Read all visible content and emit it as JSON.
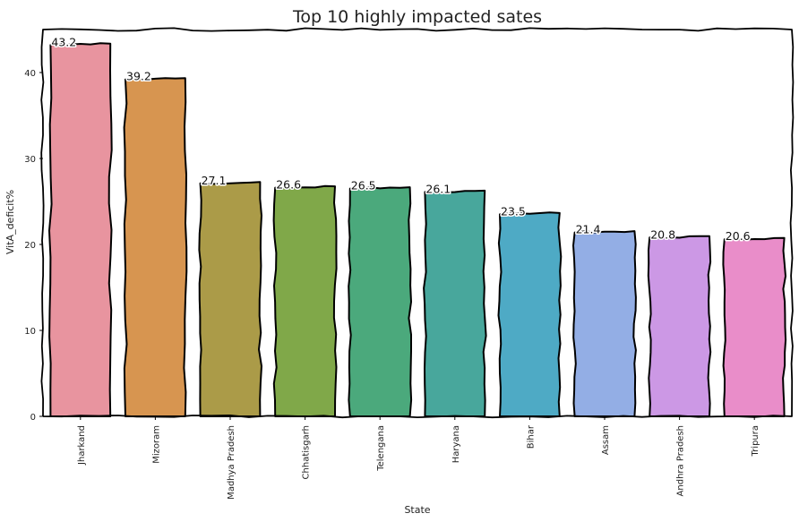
{
  "chart_data": {
    "type": "bar",
    "title": "Top 10 highly impacted sates",
    "xlabel": "State",
    "ylabel": "VitA_deficit%",
    "categories": [
      "Jharkand",
      "Mizoram",
      "Madhya Pradesh",
      "Chhatisgarh",
      "Telengana",
      "Haryana",
      "Bihar",
      "Assam",
      "Andhra Pradesh",
      "Tripura"
    ],
    "values": [
      43.2,
      39.2,
      27.1,
      26.6,
      26.5,
      26.1,
      23.5,
      21.4,
      20.8,
      20.6
    ],
    "value_labels": [
      "43.2",
      "39.2",
      "27.1",
      "26.6",
      "26.5",
      "26.1",
      "23.5",
      "21.4",
      "20.8",
      "20.6"
    ],
    "colors": [
      "#e8949f",
      "#d79550",
      "#ab9b48",
      "#80a849",
      "#4ba97c",
      "#48a79c",
      "#4eaac5",
      "#93aee5",
      "#cc98e5",
      "#e98dc9"
    ],
    "yticks": [
      0,
      10,
      20,
      30,
      40
    ],
    "ylim": [
      0,
      45
    ],
    "grid": false,
    "legend": "none",
    "style": "xkcd"
  }
}
